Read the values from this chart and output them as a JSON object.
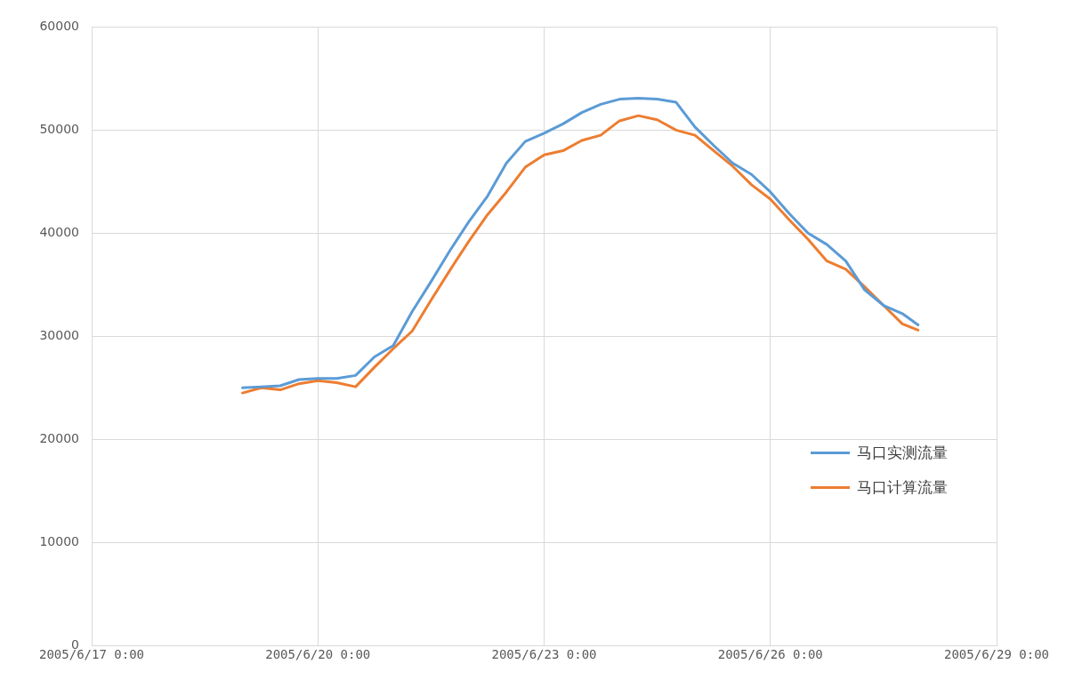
{
  "chart_data": {
    "type": "line",
    "x": [
      "2005-06-19T00:00",
      "2005-06-19T06:00",
      "2005-06-19T12:00",
      "2005-06-19T18:00",
      "2005-06-20T00:00",
      "2005-06-20T06:00",
      "2005-06-20T12:00",
      "2005-06-20T18:00",
      "2005-06-21T00:00",
      "2005-06-21T06:00",
      "2005-06-21T12:00",
      "2005-06-21T18:00",
      "2005-06-22T00:00",
      "2005-06-22T06:00",
      "2005-06-22T12:00",
      "2005-06-22T18:00",
      "2005-06-23T00:00",
      "2005-06-23T06:00",
      "2005-06-23T12:00",
      "2005-06-23T18:00",
      "2005-06-24T00:00",
      "2005-06-24T06:00",
      "2005-06-24T12:00",
      "2005-06-24T18:00",
      "2005-06-25T00:00",
      "2005-06-25T06:00",
      "2005-06-25T12:00",
      "2005-06-25T18:00",
      "2005-06-26T00:00",
      "2005-06-26T06:00",
      "2005-06-26T12:00",
      "2005-06-26T18:00",
      "2005-06-27T00:00",
      "2005-06-27T06:00",
      "2005-06-27T12:00",
      "2005-06-27T18:00",
      "2005-06-27T23:00"
    ],
    "series": [
      {
        "name": "马口实测流量",
        "color": "#5b9bd5",
        "values": [
          25000,
          25100,
          25200,
          25800,
          25900,
          25900,
          26200,
          28000,
          29100,
          32400,
          35300,
          38300,
          41100,
          43600,
          46800,
          48900,
          49700,
          50600,
          51700,
          52500,
          53000,
          53100,
          53000,
          52700,
          50300,
          48500,
          46800,
          45700,
          44000,
          41900,
          40000,
          38900,
          37300,
          34500,
          33000,
          32200,
          31100
        ]
      },
      {
        "name": "马口计算流量",
        "color": "#ed7d31",
        "values": [
          24500,
          25000,
          24800,
          25400,
          25700,
          25500,
          25100,
          27000,
          28800,
          30500,
          33500,
          36400,
          39200,
          41800,
          44000,
          46400,
          47600,
          48000,
          49000,
          49500,
          50900,
          51400,
          51000,
          50000,
          49500,
          48000,
          46500,
          44700,
          43300,
          41300,
          39400,
          37300,
          36500,
          34800,
          33000,
          31200,
          30600
        ]
      }
    ],
    "xlim": [
      "2005-06-17T00:00",
      "2005-06-29T00:00"
    ],
    "xticks": [
      {
        "value": "2005-06-17T00:00",
        "label": "2005/6/17 0:00"
      },
      {
        "value": "2005-06-20T00:00",
        "label": "2005/6/20 0:00"
      },
      {
        "value": "2005-06-23T00:00",
        "label": "2005/6/23 0:00"
      },
      {
        "value": "2005-06-26T00:00",
        "label": "2005/6/26 0:00"
      },
      {
        "value": "2005-06-29T00:00",
        "label": "2005/6/29 0:00"
      }
    ],
    "ylim": [
      0,
      60000
    ],
    "yticks": [
      0,
      10000,
      20000,
      30000,
      40000,
      50000,
      60000
    ],
    "grid": true,
    "legend": "right",
    "marker": "none",
    "line_style": "solid"
  }
}
